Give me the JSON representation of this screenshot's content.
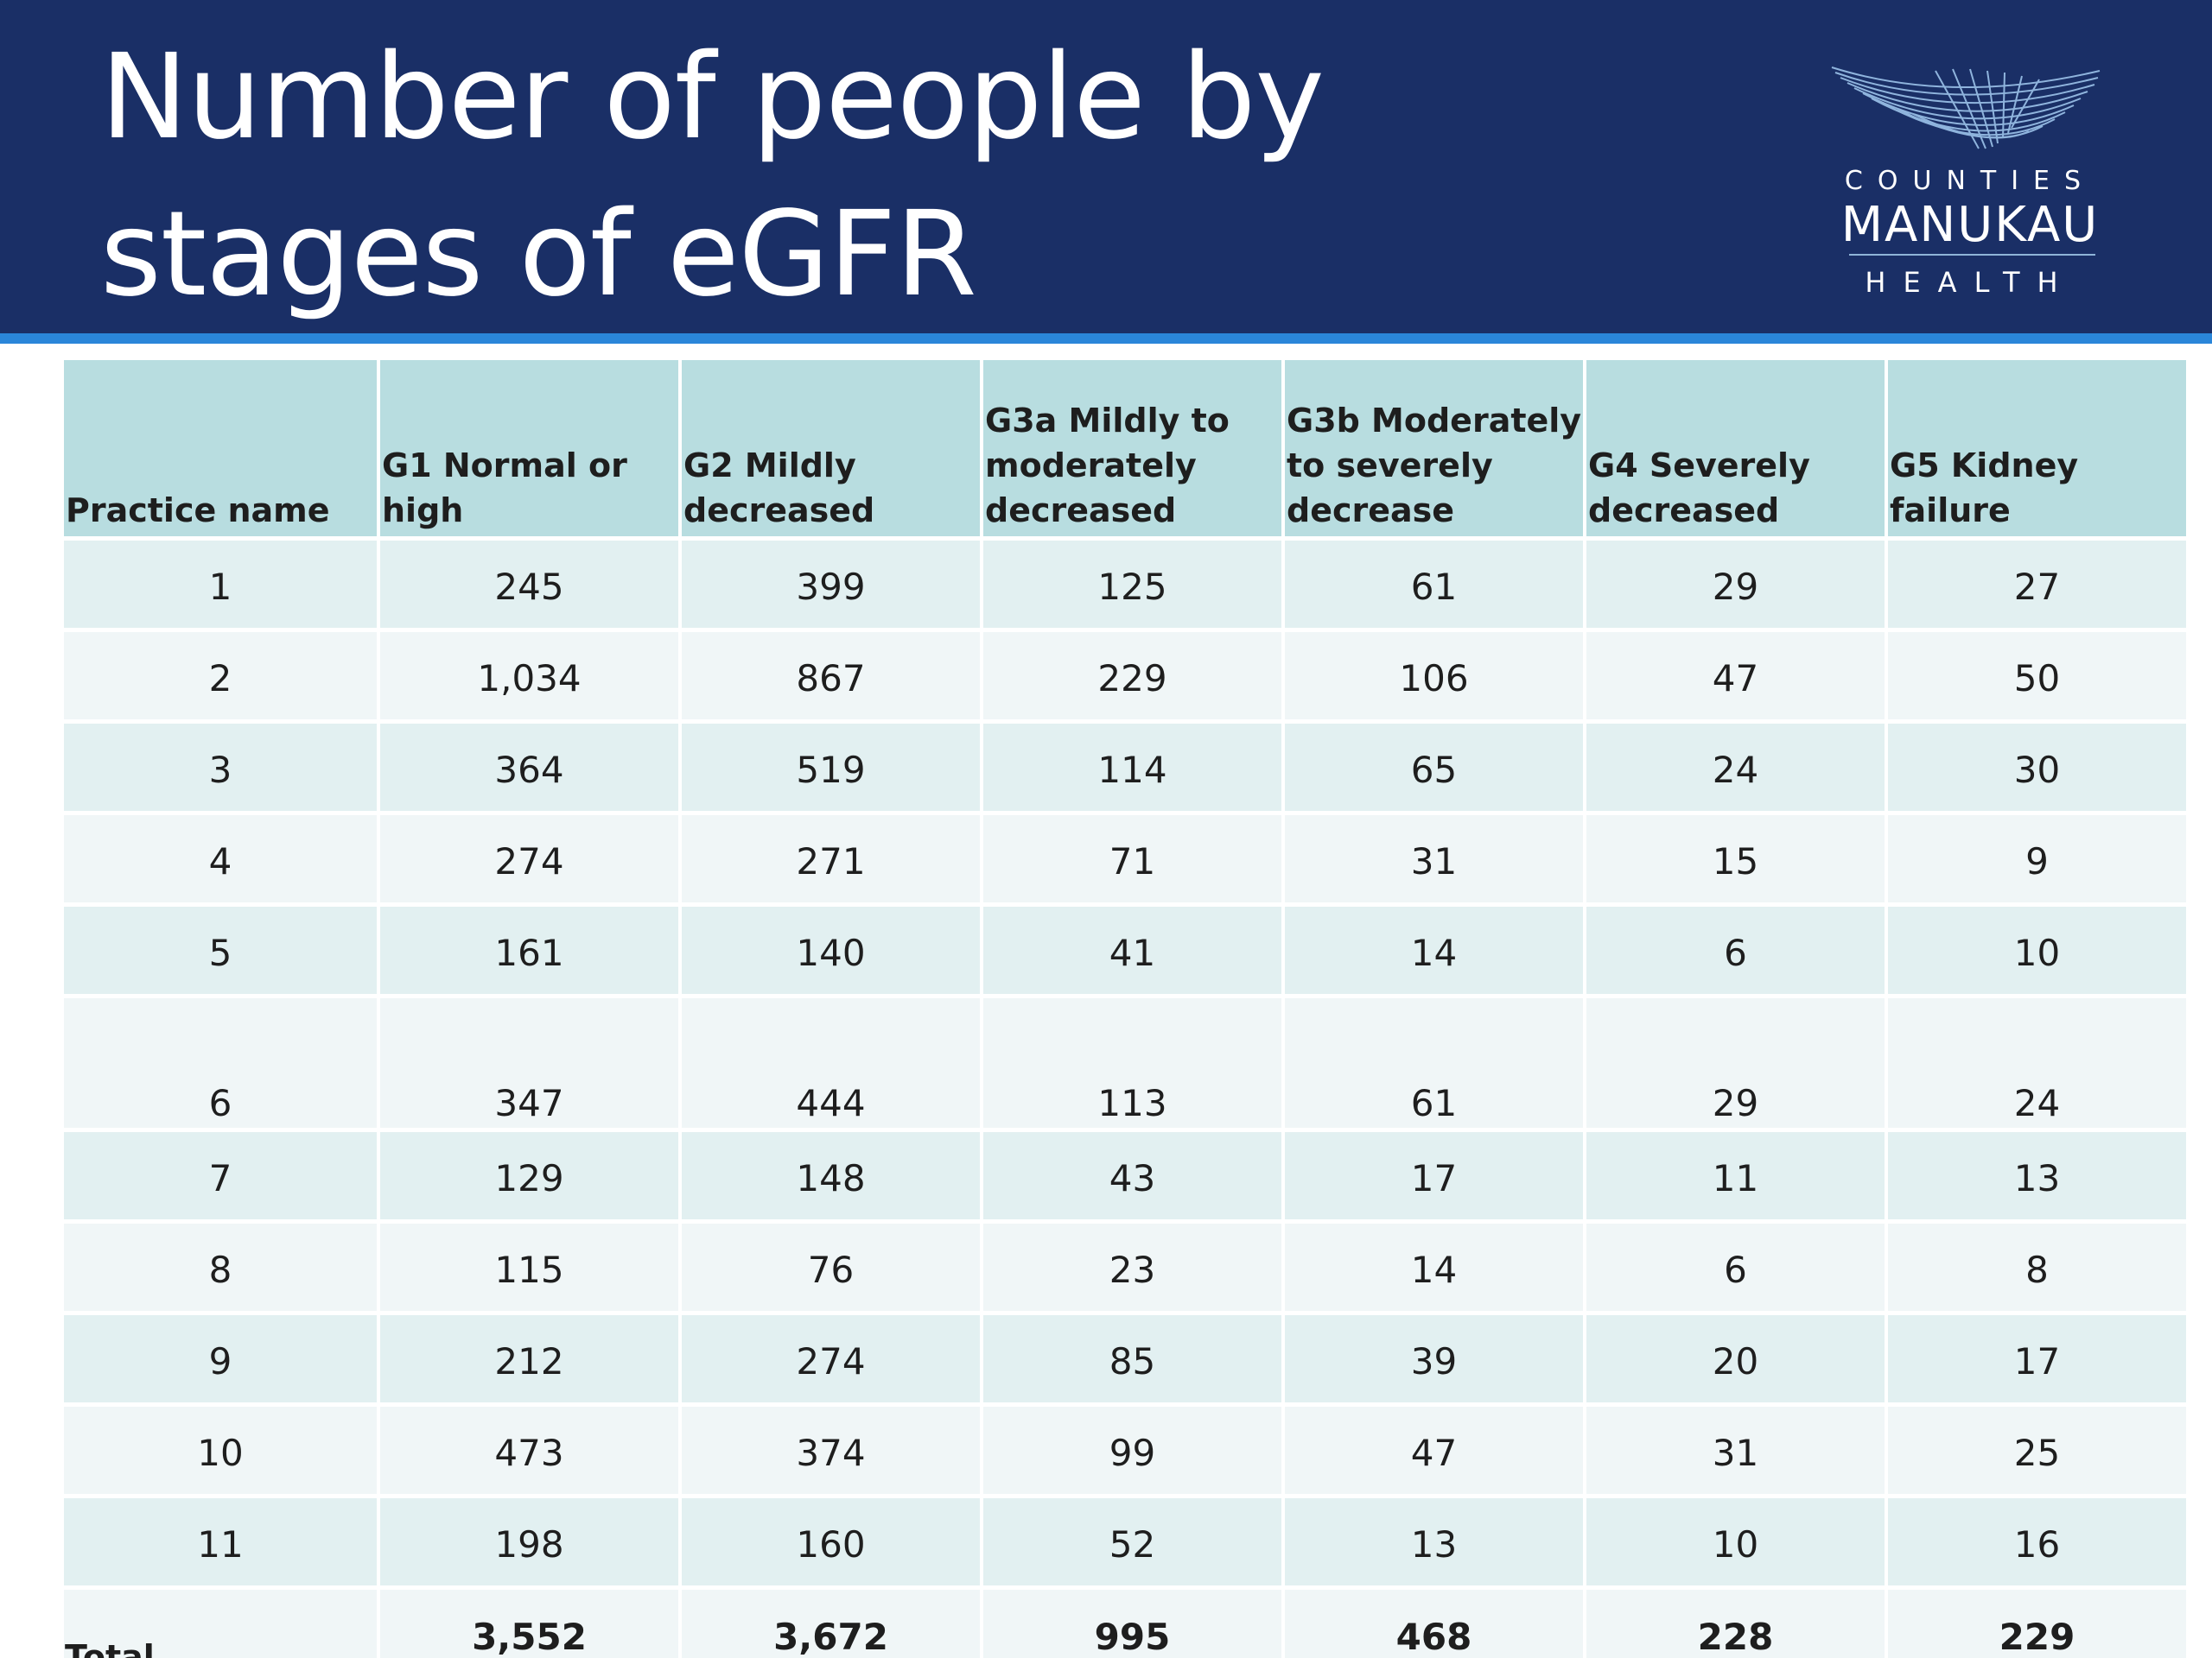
{
  "header": {
    "title": "Number of people by stages of eGFR",
    "logo": {
      "top": "COUNTIES",
      "main": "MANUKAU",
      "bottom": "HEALTH"
    },
    "colors": {
      "background": "#1a2f66",
      "rule": "#2a86d9"
    }
  },
  "table": {
    "columns": [
      "Practice name",
      "G1 Normal or high",
      "G2 Mildly decreased",
      "G3a Mildly to moderately decreased",
      "G3b Moderately to severely decrease",
      "G4 Severely decreased",
      "G5 Kidney failure"
    ],
    "rows": [
      [
        "1",
        "245",
        "399",
        "125",
        "61",
        "29",
        "27"
      ],
      [
        "2",
        "1,034",
        "867",
        "229",
        "106",
        "47",
        "50"
      ],
      [
        "3",
        "364",
        "519",
        "114",
        "65",
        "24",
        "30"
      ],
      [
        "4",
        "274",
        "271",
        "71",
        "31",
        "15",
        "9"
      ],
      [
        "5",
        "161",
        "140",
        "41",
        "14",
        "6",
        "10"
      ],
      [
        "6",
        "347",
        "444",
        "113",
        "61",
        "29",
        "24"
      ],
      [
        "7",
        "129",
        "148",
        "43",
        "17",
        "11",
        "13"
      ],
      [
        "8",
        "115",
        "76",
        "23",
        "14",
        "6",
        "8"
      ],
      [
        "9",
        "212",
        "274",
        "85",
        "39",
        "20",
        "17"
      ],
      [
        "10",
        "473",
        "374",
        "99",
        "47",
        "31",
        "25"
      ],
      [
        "11",
        "198",
        "160",
        "52",
        "13",
        "10",
        "16"
      ]
    ],
    "total": [
      "Total",
      "3,552",
      "3,672",
      "995",
      "468",
      "228",
      "229"
    ],
    "colors": {
      "header_fill": "#b8dde0",
      "row_fill_odd": "#e2f0f1",
      "row_fill_even": "#f0f6f7"
    }
  }
}
